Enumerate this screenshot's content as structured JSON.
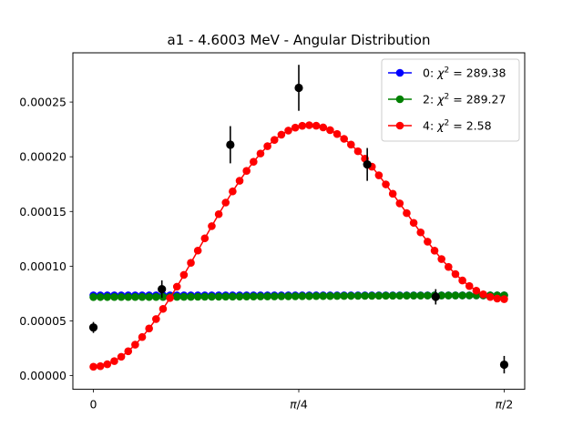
{
  "chart_data": {
    "type": "scatter",
    "title": "a1 - 4.6003 MeV - Angular Distribution",
    "xlabel": "",
    "ylabel": "",
    "xlim": [
      -0.0785,
      1.6493
    ],
    "ylim": [
      -1.25e-05,
      0.000295
    ],
    "x_ticks": [
      {
        "value": 0,
        "label": "0"
      },
      {
        "value": 0.7854,
        "label": "π/4",
        "italic_part": "π",
        "rest": "/4"
      },
      {
        "value": 1.5708,
        "label": "π/2",
        "italic_part": "π",
        "rest": "/2"
      }
    ],
    "y_ticks": [
      {
        "value": 0.0,
        "label": "0.00000"
      },
      {
        "value": 5e-05,
        "label": "0.00005"
      },
      {
        "value": 0.0001,
        "label": "0.00010"
      },
      {
        "value": 0.00015,
        "label": "0.00015"
      },
      {
        "value": 0.0002,
        "label": "0.00020"
      },
      {
        "value": 0.00025,
        "label": "0.00025"
      }
    ],
    "grid": false,
    "legend_position": "top-right",
    "fit_series": [
      {
        "name_prefix": "0: ",
        "name_chi": "χ",
        "name_suffix": " = 289.38",
        "color": "#0000ff",
        "model": "constant",
        "params": {
          "a0": 7.33e-05
        }
      },
      {
        "name_prefix": "2: ",
        "name_chi": "χ",
        "name_suffix": " = 289.27",
        "color": "#008000",
        "model": "legendre",
        "params": {
          "a0": 7.28e-05,
          "a2": -1e-06
        }
      },
      {
        "name_prefix": "4: ",
        "name_chi": "χ",
        "name_suffix": " = 2.58",
        "color": "#ff0000",
        "model": "cos4",
        "params": {
          "c": 0.0001333,
          "a": 9.43e-05,
          "b": 3.09e-05
        }
      }
    ],
    "fit_points": 60,
    "data_points": {
      "color": "#000000",
      "x": [
        0.0,
        0.2618,
        0.5236,
        0.7854,
        1.0472,
        1.309,
        1.5708
      ],
      "y": [
        4.4e-05,
        7.9e-05,
        0.000211,
        0.000263,
        0.000193,
        7.2e-05,
        1e-05
      ],
      "yerr": [
        5e-06,
        8e-06,
        1.7e-05,
        2.1e-05,
        1.5e-05,
        7e-06,
        8e-06
      ]
    }
  }
}
